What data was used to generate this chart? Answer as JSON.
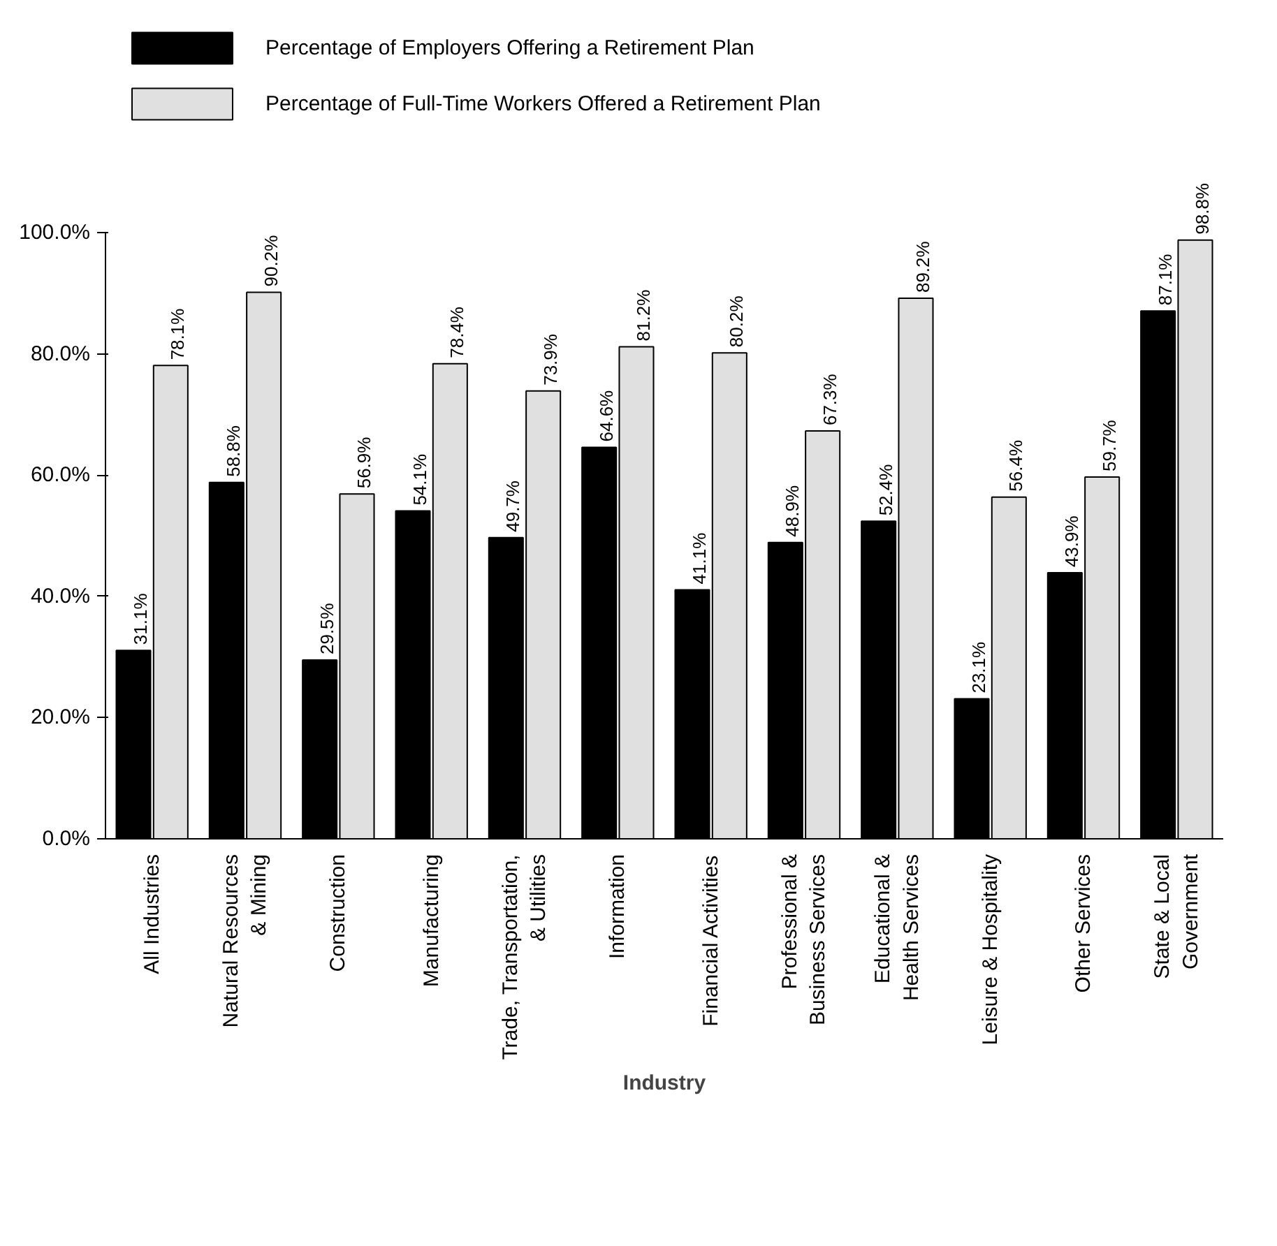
{
  "chart_data": {
    "type": "bar",
    "xlabel": "Industry",
    "categories": [
      "All Industries",
      "Natural Resources\n& Mining",
      "Construction",
      "Manufacturing",
      "Trade, Transportation,\n& Utilities",
      "Information",
      "Financial Activities",
      "Professional &\nBusiness Services",
      "Educational &\nHealth Services",
      "Leisure & Hospitality",
      "Other Services",
      "State & Local\nGovernment"
    ],
    "series": [
      {
        "name": "Percentage of Employers Offering a Retirement Plan",
        "color": "#000000",
        "values": [
          31.1,
          58.8,
          29.5,
          54.1,
          49.7,
          64.6,
          41.1,
          48.9,
          52.4,
          23.1,
          43.9,
          87.1
        ],
        "value_labels": [
          "31.1%",
          "58.8%",
          "29.5%",
          "54.1%",
          "49.7%",
          "64.6%",
          "41.1%",
          "48.9%",
          "52.4%",
          "23.1%",
          "43.9%",
          "87.1%"
        ]
      },
      {
        "name": "Percentage of Full-Time Workers Offered a Retirement Plan",
        "color": "#e0e0e0",
        "values": [
          78.1,
          90.2,
          56.9,
          78.4,
          73.9,
          81.2,
          80.2,
          67.3,
          89.2,
          56.4,
          59.7,
          98.8
        ],
        "value_labels": [
          "78.1%",
          "90.2%",
          "56.9%",
          "78.4%",
          "73.9%",
          "81.2%",
          "80.2%",
          "67.3%",
          "89.2%",
          "56.4%",
          "59.7%",
          "98.8%"
        ]
      }
    ],
    "ylim": [
      0,
      100
    ],
    "yticks": [
      {
        "value": 0,
        "label": "0.0%"
      },
      {
        "value": 20,
        "label": "20.0%"
      },
      {
        "value": 40,
        "label": "40.0%"
      },
      {
        "value": 60,
        "label": "60.0%"
      },
      {
        "value": 80,
        "label": "80.0%"
      },
      {
        "value": 100,
        "label": "100.0%"
      }
    ],
    "grid": false,
    "legend": "top"
  }
}
